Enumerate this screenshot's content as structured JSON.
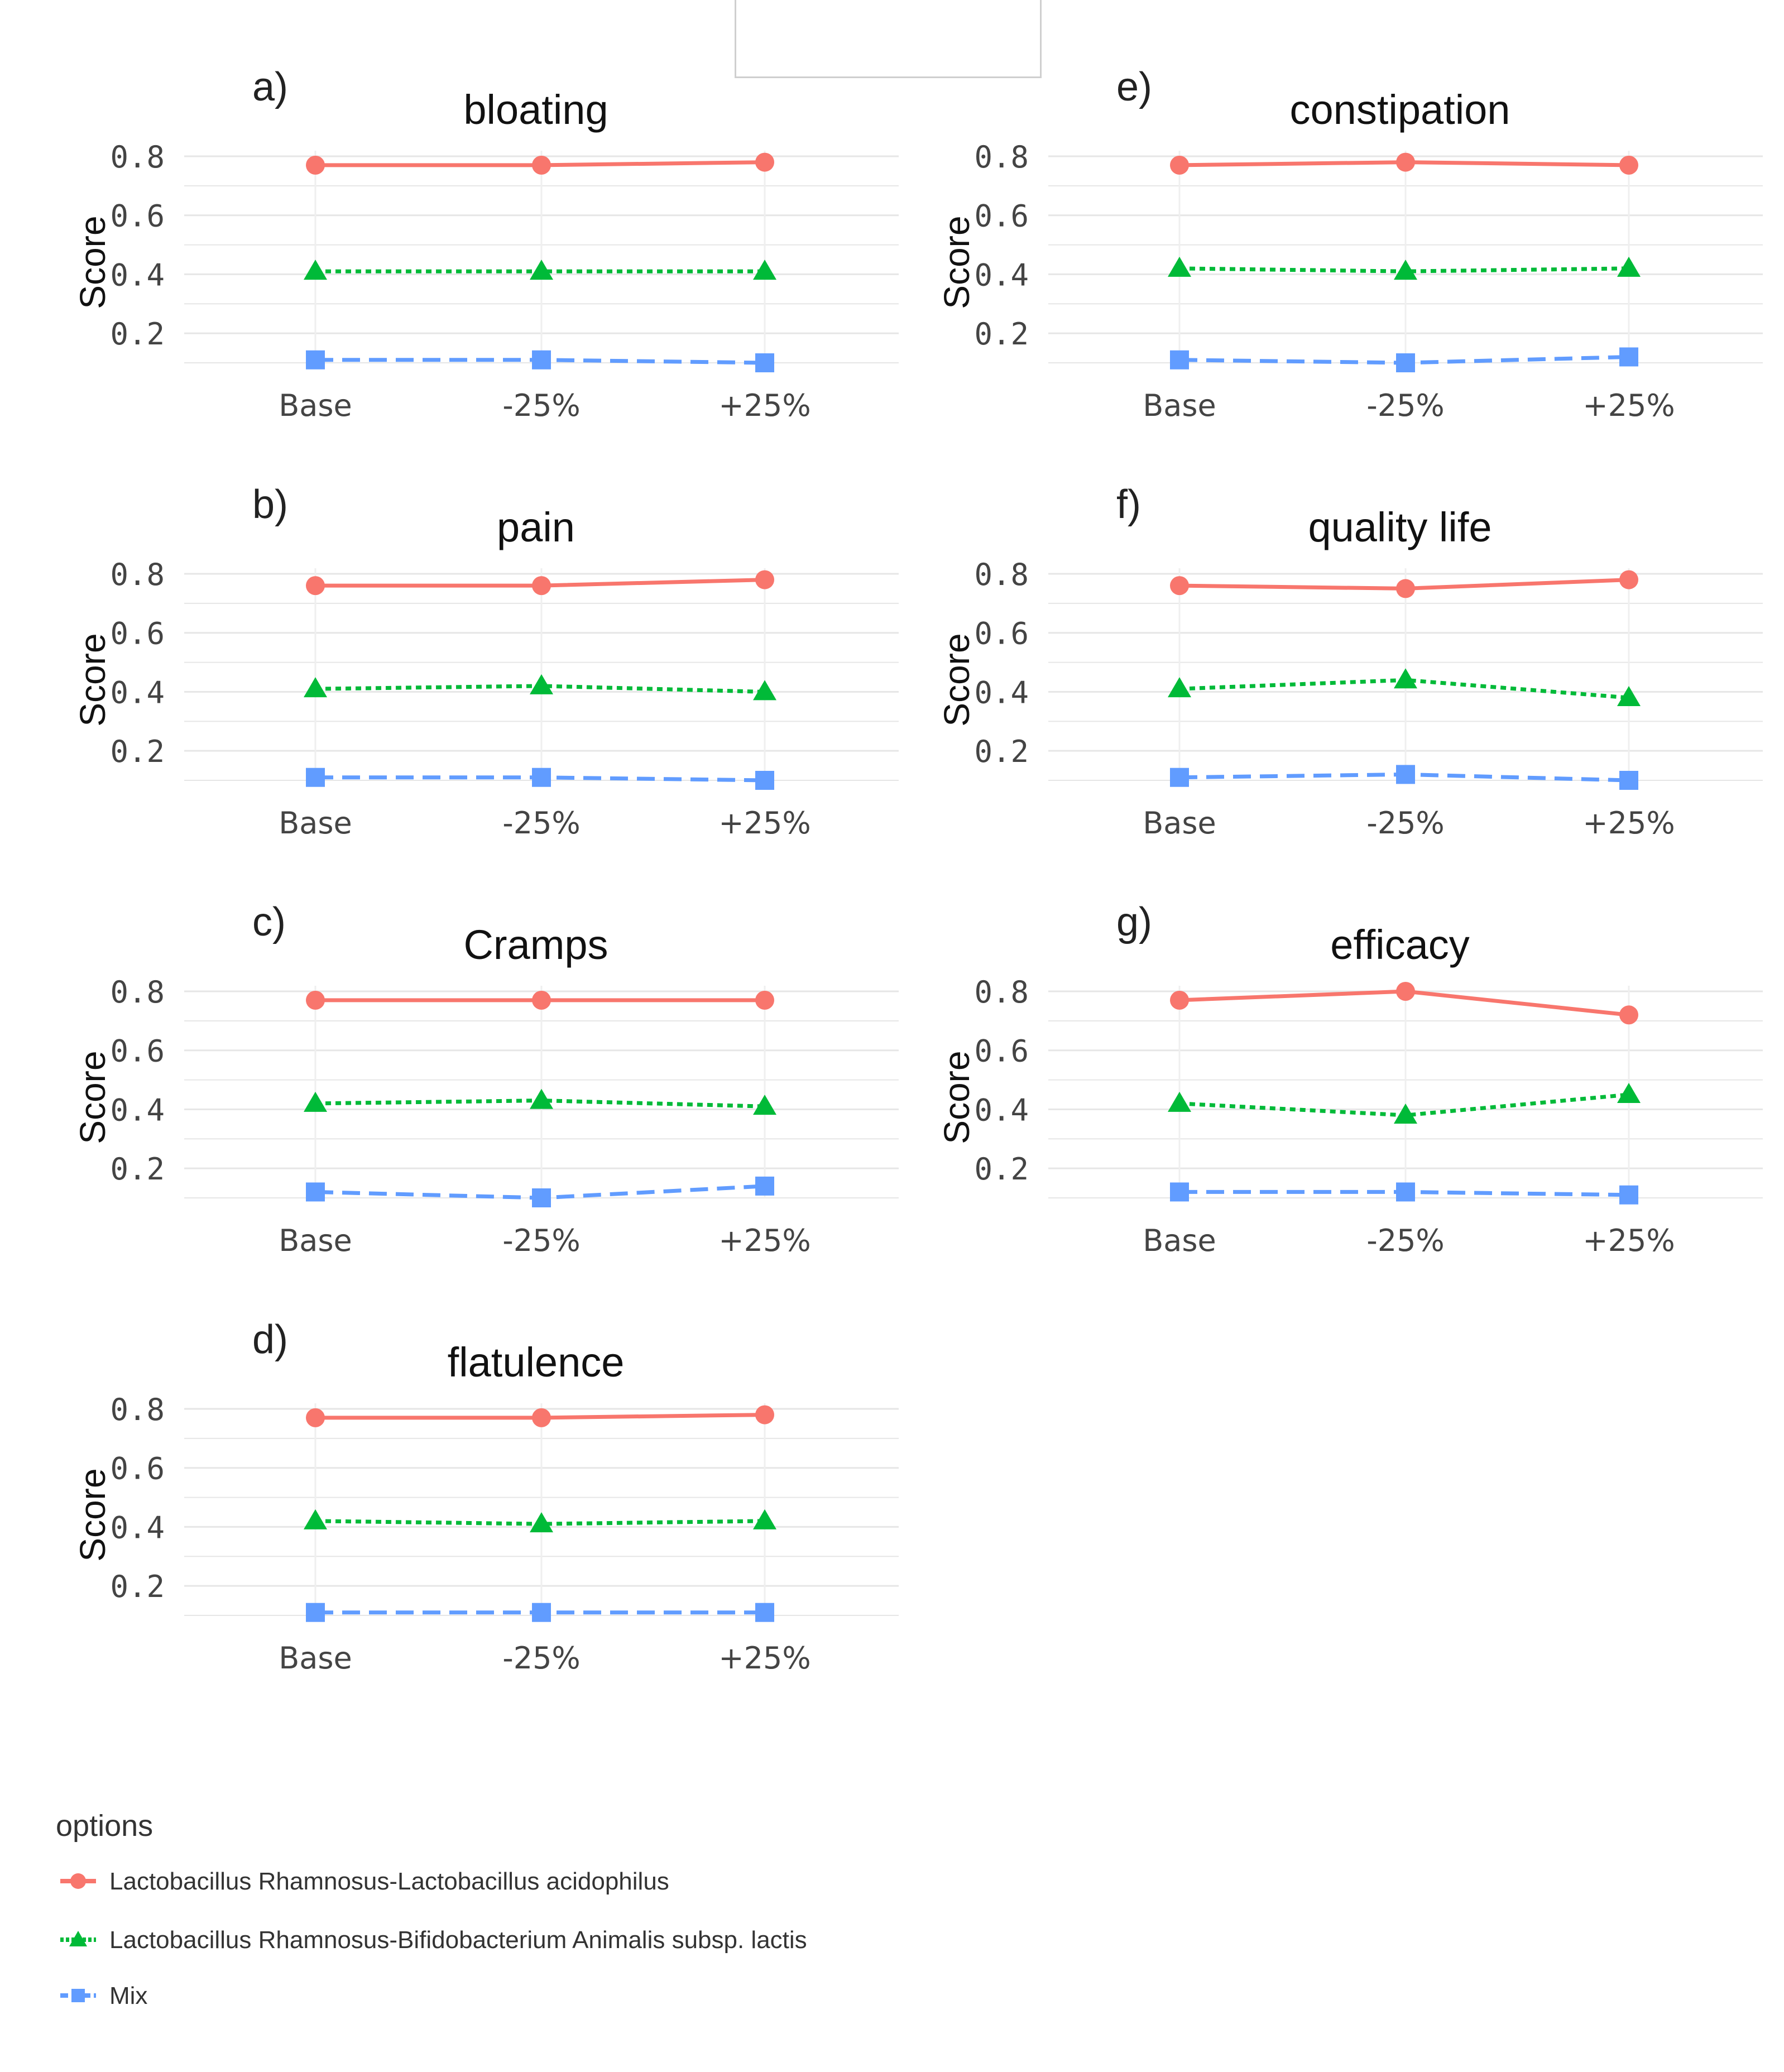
{
  "colors": {
    "series_1": "#F8766D",
    "series_2": "#00BA38",
    "series_3": "#619CFF",
    "grid": "#e6e6e6",
    "text": "#333333"
  },
  "legend": {
    "title": "options",
    "entries": [
      {
        "label": "Lactobacillus Rhamnosus-Lactobacillus acidophilus",
        "color": "#F8766D",
        "marker": "circle",
        "line": "solid"
      },
      {
        "label": "Lactobacillus Rhamnosus-Bifidobacterium Animalis subsp. lactis",
        "color": "#00BA38",
        "marker": "triangle",
        "line": "dotted"
      },
      {
        "label": "Mix",
        "color": "#619CFF",
        "marker": "square",
        "line": "dashed"
      }
    ]
  },
  "chart_data": [
    {
      "type": "line",
      "panel": "a)",
      "title": "bloating",
      "ylabel": "Score",
      "xlabel": "",
      "categories": [
        "Base",
        "-25%",
        "+25%"
      ],
      "yticks": [
        "0.2",
        "0.4",
        "0.6",
        "0.8"
      ],
      "ylim": [
        0.1,
        0.8
      ],
      "grid": true,
      "series": [
        {
          "name": "Lactobacillus Rhamnosus-Lactobacillus acidophilus",
          "values": [
            0.77,
            0.77,
            0.78
          ]
        },
        {
          "name": "Lactobacillus Rhamnosus-Bifidobacterium Animalis subsp. lactis",
          "values": [
            0.41,
            0.41,
            0.41
          ]
        },
        {
          "name": "Mix",
          "values": [
            0.11,
            0.11,
            0.1
          ]
        }
      ]
    },
    {
      "type": "line",
      "panel": "b)",
      "title": "pain",
      "ylabel": "Score",
      "xlabel": "",
      "categories": [
        "Base",
        "-25%",
        "+25%"
      ],
      "yticks": [
        "0.2",
        "0.4",
        "0.6",
        "0.8"
      ],
      "ylim": [
        0.1,
        0.8
      ],
      "grid": true,
      "series": [
        {
          "name": "Lactobacillus Rhamnosus-Lactobacillus acidophilus",
          "values": [
            0.76,
            0.76,
            0.78
          ]
        },
        {
          "name": "Lactobacillus Rhamnosus-Bifidobacterium Animalis subsp. lactis",
          "values": [
            0.41,
            0.42,
            0.4
          ]
        },
        {
          "name": "Mix",
          "values": [
            0.11,
            0.11,
            0.1
          ]
        }
      ]
    },
    {
      "type": "line",
      "panel": "c)",
      "title": "Cramps",
      "ylabel": "Score",
      "xlabel": "",
      "categories": [
        "Base",
        "-25%",
        "+25%"
      ],
      "yticks": [
        "0.2",
        "0.4",
        "0.6",
        "0.8"
      ],
      "ylim": [
        0.1,
        0.8
      ],
      "grid": true,
      "series": [
        {
          "name": "Lactobacillus Rhamnosus-Lactobacillus acidophilus",
          "values": [
            0.77,
            0.77,
            0.77
          ]
        },
        {
          "name": "Lactobacillus Rhamnosus-Bifidobacterium Animalis subsp. lactis",
          "values": [
            0.42,
            0.43,
            0.41
          ]
        },
        {
          "name": "Mix",
          "values": [
            0.12,
            0.1,
            0.14
          ]
        }
      ]
    },
    {
      "type": "line",
      "panel": "d)",
      "title": "flatulence",
      "ylabel": "Score",
      "xlabel": "",
      "categories": [
        "Base",
        "-25%",
        "+25%"
      ],
      "yticks": [
        "0.2",
        "0.4",
        "0.6",
        "0.8"
      ],
      "ylim": [
        0.1,
        0.8
      ],
      "grid": true,
      "series": [
        {
          "name": "Lactobacillus Rhamnosus-Lactobacillus acidophilus",
          "values": [
            0.77,
            0.77,
            0.78
          ]
        },
        {
          "name": "Lactobacillus Rhamnosus-Bifidobacterium Animalis subsp. lactis",
          "values": [
            0.42,
            0.41,
            0.42
          ]
        },
        {
          "name": "Mix",
          "values": [
            0.11,
            0.11,
            0.11
          ]
        }
      ]
    },
    {
      "type": "line",
      "panel": "e)",
      "title": "constipation",
      "ylabel": "Score",
      "xlabel": "",
      "categories": [
        "Base",
        "-25%",
        "+25%"
      ],
      "yticks": [
        "0.2",
        "0.4",
        "0.6",
        "0.8"
      ],
      "ylim": [
        0.1,
        0.8
      ],
      "grid": true,
      "series": [
        {
          "name": "Lactobacillus Rhamnosus-Lactobacillus acidophilus",
          "values": [
            0.77,
            0.78,
            0.77
          ]
        },
        {
          "name": "Lactobacillus Rhamnosus-Bifidobacterium Animalis subsp. lactis",
          "values": [
            0.42,
            0.41,
            0.42
          ]
        },
        {
          "name": "Mix",
          "values": [
            0.11,
            0.1,
            0.12
          ]
        }
      ]
    },
    {
      "type": "line",
      "panel": "f)",
      "title": "quality life",
      "ylabel": "Score",
      "xlabel": "",
      "categories": [
        "Base",
        "-25%",
        "+25%"
      ],
      "yticks": [
        "0.2",
        "0.4",
        "0.6",
        "0.8"
      ],
      "ylim": [
        0.1,
        0.8
      ],
      "grid": true,
      "series": [
        {
          "name": "Lactobacillus Rhamnosus-Lactobacillus acidophilus",
          "values": [
            0.76,
            0.75,
            0.78
          ]
        },
        {
          "name": "Lactobacillus Rhamnosus-Bifidobacterium Animalis subsp. lactis",
          "values": [
            0.41,
            0.44,
            0.38
          ]
        },
        {
          "name": "Mix",
          "values": [
            0.11,
            0.12,
            0.1
          ]
        }
      ]
    },
    {
      "type": "line",
      "panel": "g)",
      "title": "efficacy",
      "ylabel": "Score",
      "xlabel": "",
      "categories": [
        "Base",
        "-25%",
        "+25%"
      ],
      "yticks": [
        "0.2",
        "0.4",
        "0.6",
        "0.8"
      ],
      "ylim": [
        0.1,
        0.8
      ],
      "grid": true,
      "series": [
        {
          "name": "Lactobacillus Rhamnosus-Lactobacillus acidophilus",
          "values": [
            0.77,
            0.8,
            0.72
          ]
        },
        {
          "name": "Lactobacillus Rhamnosus-Bifidobacterium Animalis subsp. lactis",
          "values": [
            0.42,
            0.38,
            0.45
          ]
        },
        {
          "name": "Mix",
          "values": [
            0.12,
            0.12,
            0.11
          ]
        }
      ]
    }
  ]
}
